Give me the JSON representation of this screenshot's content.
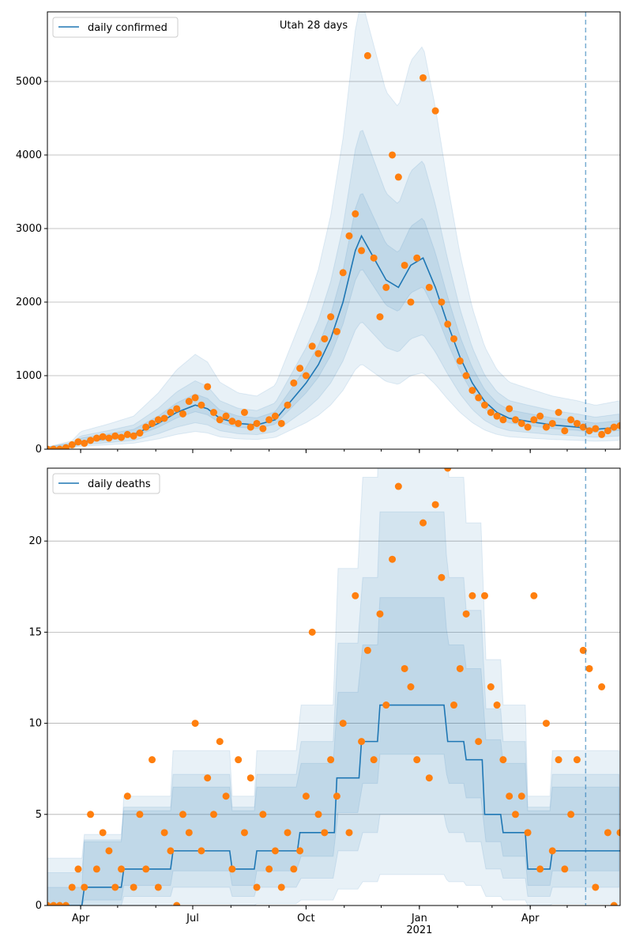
{
  "chart_data": [
    {
      "type": "line",
      "title": "Utah 28 days",
      "legend": {
        "label": "daily confirmed",
        "placement": "top-left"
      },
      "ylim": [
        0,
        5946
      ],
      "yticks": [
        0,
        1000,
        2000,
        3000,
        4000,
        5000
      ],
      "grid": "y",
      "x_unit": "days since 2020-03-05",
      "xlim": [
        0,
        465
      ],
      "forecast_start_day": 437,
      "line": [
        [
          0,
          0
        ],
        [
          20,
          40
        ],
        [
          27,
          100
        ],
        [
          50,
          150
        ],
        [
          70,
          200
        ],
        [
          90,
          350
        ],
        [
          105,
          500
        ],
        [
          120,
          600
        ],
        [
          130,
          550
        ],
        [
          140,
          420
        ],
        [
          155,
          350
        ],
        [
          170,
          330
        ],
        [
          185,
          400
        ],
        [
          200,
          700
        ],
        [
          210,
          900
        ],
        [
          220,
          1150
        ],
        [
          230,
          1500
        ],
        [
          240,
          2000
        ],
        [
          250,
          2700
        ],
        [
          255,
          2900
        ],
        [
          265,
          2600
        ],
        [
          275,
          2300
        ],
        [
          285,
          2200
        ],
        [
          295,
          2500
        ],
        [
          305,
          2600
        ],
        [
          315,
          2200
        ],
        [
          325,
          1700
        ],
        [
          335,
          1250
        ],
        [
          345,
          900
        ],
        [
          355,
          650
        ],
        [
          365,
          500
        ],
        [
          375,
          420
        ],
        [
          390,
          380
        ],
        [
          410,
          330
        ],
        [
          430,
          300
        ],
        [
          445,
          270
        ],
        [
          465,
          300
        ]
      ],
      "interval_scale": [
        [
          0.85,
          1.2
        ],
        [
          0.6,
          1.5
        ],
        [
          0.4,
          2.1
        ]
      ],
      "observed_step_days": 5,
      "observed": [
        0,
        0,
        0,
        20,
        60,
        100,
        80,
        120,
        150,
        170,
        150,
        180,
        160,
        200,
        180,
        220,
        300,
        350,
        400,
        420,
        500,
        550,
        480,
        650,
        700,
        600,
        850,
        500,
        400,
        450,
        380,
        350,
        500,
        300,
        350,
        280,
        400,
        450,
        350,
        600,
        900,
        1100,
        1000,
        1400,
        1300,
        1500,
        1800,
        1600,
        2400,
        2900,
        3200,
        2700,
        5350,
        2600,
        1800,
        2200,
        4000,
        3700,
        2500,
        2000,
        2600,
        5050,
        2200,
        4600,
        2000,
        1700,
        1500,
        1200,
        1000,
        800,
        700,
        600,
        500,
        450,
        400,
        550,
        400,
        350,
        300,
        400,
        450,
        300,
        350,
        500,
        250,
        400,
        350,
        300,
        250,
        280,
        200,
        250,
        300,
        320
      ]
    },
    {
      "type": "line",
      "legend": {
        "label": "daily deaths",
        "placement": "top-left"
      },
      "ylim": [
        0,
        24
      ],
      "yticks": [
        0,
        5,
        10,
        15,
        20
      ],
      "grid": "y",
      "xlim": [
        0,
        465
      ],
      "forecast_start_day": 437,
      "xtick_labels": [
        {
          "day": 27,
          "label": "Apr"
        },
        {
          "day": 118,
          "label": "Jul"
        },
        {
          "day": 210,
          "label": "Oct"
        },
        {
          "day": 302,
          "label": "Jan"
        },
        {
          "day": 392,
          "label": "Apr"
        }
      ],
      "year_label": {
        "day": 302,
        "label": "2021"
      },
      "line": [
        [
          0,
          0
        ],
        [
          28,
          0
        ],
        [
          30,
          1
        ],
        [
          60,
          1
        ],
        [
          62,
          2
        ],
        [
          100,
          2
        ],
        [
          102,
          3
        ],
        [
          148,
          3
        ],
        [
          150,
          2
        ],
        [
          168,
          2
        ],
        [
          170,
          3
        ],
        [
          203,
          3
        ],
        [
          205,
          4
        ],
        [
          233,
          4
        ],
        [
          235,
          7
        ],
        [
          253,
          7
        ],
        [
          255,
          9
        ],
        [
          268,
          9
        ],
        [
          270,
          11
        ],
        [
          322,
          11
        ],
        [
          325,
          9
        ],
        [
          338,
          9
        ],
        [
          340,
          8
        ],
        [
          353,
          8
        ],
        [
          355,
          5
        ],
        [
          368,
          5
        ],
        [
          370,
          4
        ],
        [
          388,
          4
        ],
        [
          390,
          2
        ],
        [
          408,
          2
        ],
        [
          410,
          3
        ],
        [
          465,
          3
        ]
      ],
      "interval_scale": [
        [
          0.8,
          1.3
        ],
        [
          0.5,
          1.8
        ],
        [
          0.2,
          2.5
        ]
      ],
      "observed_step_days": 5,
      "observed": [
        0,
        0,
        0,
        0,
        1,
        2,
        1,
        5,
        2,
        4,
        3,
        1,
        2,
        6,
        1,
        5,
        2,
        8,
        1,
        4,
        3,
        0,
        5,
        4,
        10,
        3,
        7,
        5,
        9,
        6,
        2,
        8,
        4,
        7,
        1,
        5,
        2,
        3,
        1,
        4,
        2,
        3,
        6,
        15,
        5,
        4,
        8,
        6,
        10,
        4,
        17,
        9,
        14,
        8,
        16,
        11,
        19,
        23,
        13,
        12,
        8,
        21,
        7,
        22,
        18,
        24,
        11,
        13,
        16,
        17,
        9,
        17,
        12,
        11,
        8,
        6,
        5,
        6,
        4,
        17,
        2,
        10,
        3,
        8,
        2,
        5,
        8,
        14,
        13,
        1,
        12,
        4,
        0,
        4
      ]
    }
  ],
  "colors": {
    "line": "#1f77b4",
    "band": "#1f77b4",
    "points": "#ff7f0e",
    "grid": "#b0b0b0"
  }
}
